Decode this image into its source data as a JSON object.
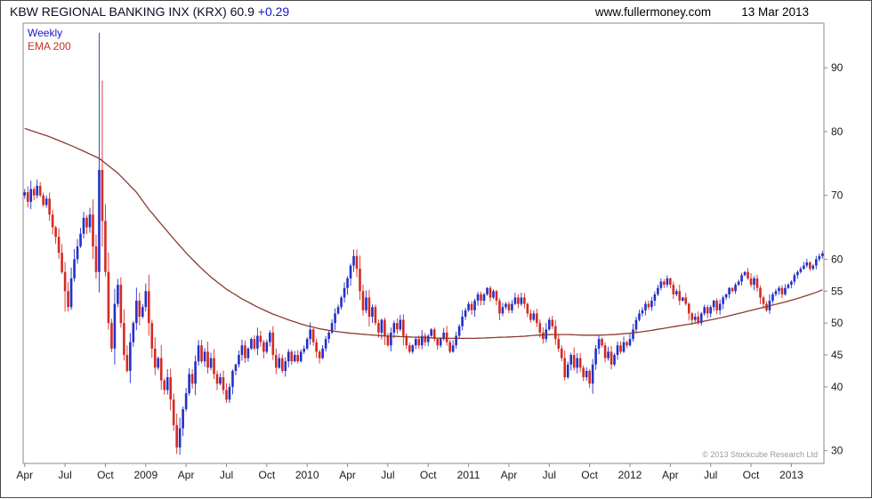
{
  "header": {
    "title_name": "KBW REGIONAL BANKING INX (KRX)",
    "title_value": "60.9",
    "title_change": "+0.29",
    "website": "www.fullermoney.com",
    "date": "13 Mar 2013"
  },
  "legend": {
    "timeframe": "Weekly",
    "indicator": "EMA 200"
  },
  "footer": {
    "copyright": "© 2013 Stockcube Research Ltd"
  },
  "colors": {
    "up": "#2330c8",
    "down": "#d42a22",
    "ema": "#8b3a30",
    "frame": "#8a8a8a",
    "tick_label": "#1a1a1a",
    "title": "#0b0b2a",
    "change": "#1717c8",
    "weekly": "#1717c8",
    "ema_label": "#c03328",
    "copyright": "#9a9a9a"
  },
  "chart_data": {
    "type": "candlestick",
    "timeframe": "weekly",
    "title": "KBW REGIONAL BANKING INX (KRX)",
    "last_close": 60.9,
    "change": 0.29,
    "ylim": [
      28,
      97
    ],
    "y_ticks": [
      90,
      80,
      70,
      60,
      55,
      50,
      45,
      40,
      30
    ],
    "x_tick_labels": [
      "Apr",
      "Jul",
      "Oct",
      "2009",
      "Apr",
      "Jul",
      "Oct",
      "2010",
      "Apr",
      "Jul",
      "Oct",
      "2011",
      "Apr",
      "Jul",
      "Oct",
      "2012",
      "Apr",
      "Jul",
      "Oct",
      "2013"
    ],
    "x_tick_weeks": [
      0,
      13,
      26,
      39,
      52,
      65,
      78,
      91,
      104,
      117,
      130,
      143,
      156,
      169,
      182,
      195,
      208,
      221,
      234,
      247
    ],
    "grid": false,
    "legend_entries": [
      "Weekly",
      "EMA 200"
    ],
    "closes": [
      70.5,
      69,
      71,
      70,
      71.5,
      70,
      68.5,
      69.5,
      67,
      65,
      63.5,
      61,
      58,
      55,
      52.5,
      57,
      60,
      62,
      64,
      66.5,
      65,
      67,
      62,
      58,
      74,
      66,
      58,
      50,
      46,
      53,
      56,
      50,
      45,
      42.5,
      47,
      50,
      53.5,
      51,
      52.5,
      55,
      50,
      46,
      43,
      44.5,
      41,
      39.5,
      41.5,
      38,
      34,
      30.5,
      33.5,
      36.5,
      39,
      42,
      40.5,
      44,
      46.5,
      44,
      45.5,
      43,
      44.5,
      42,
      40.5,
      41.5,
      39.5,
      38,
      40,
      42.5,
      43.5,
      45,
      46.5,
      44.5,
      46,
      47.5,
      46,
      48,
      47,
      45.5,
      47,
      48.5,
      45,
      43,
      44.5,
      42.5,
      44,
      45.5,
      44,
      45,
      44,
      45.5,
      46,
      47.5,
      49,
      47,
      45.5,
      44.5,
      46,
      47.5,
      48.5,
      50,
      51.5,
      52.5,
      54,
      55.5,
      57,
      59,
      60.5,
      58.5,
      55,
      52,
      54,
      51,
      52.5,
      50,
      48.5,
      50.5,
      48,
      46.5,
      48.5,
      50,
      49,
      50.5,
      48,
      46.5,
      45.5,
      46.5,
      47.5,
      46.5,
      48,
      47,
      48,
      49,
      47.5,
      46.5,
      47.5,
      48.5,
      47,
      45.5,
      46.5,
      48,
      49.5,
      51,
      52,
      53,
      52,
      53.5,
      54.5,
      53.5,
      54.5,
      55.5,
      54,
      55,
      53.5,
      51.5,
      52.5,
      53,
      52,
      53,
      54,
      53,
      54,
      53,
      51.5,
      50.5,
      51.5,
      50,
      48.5,
      47.5,
      49,
      50.5,
      49.5,
      47.5,
      46,
      44.5,
      41.5,
      43.5,
      45,
      43,
      44.5,
      43,
      41.5,
      42.5,
      40.5,
      43.5,
      46,
      47.5,
      46.5,
      44.5,
      45.5,
      43.5,
      45,
      46.5,
      45.5,
      47,
      46.5,
      47.5,
      49,
      50.5,
      51.5,
      52,
      53,
      52.5,
      53.5,
      54.5,
      55.5,
      56.5,
      56,
      57,
      56,
      54.5,
      55,
      53.5,
      54,
      53,
      51.5,
      50.5,
      51,
      50,
      51.5,
      52.5,
      51.5,
      52.5,
      53.5,
      52,
      53,
      54,
      54.5,
      55.5,
      55,
      56,
      56.5,
      57.5,
      58,
      57,
      56,
      57,
      55.5,
      54,
      53,
      52,
      53.5,
      54.5,
      55,
      55.5,
      54.5,
      55.5,
      56,
      56.5,
      57.5,
      58,
      58.5,
      59,
      59.5,
      58.5,
      59,
      60,
      60.5,
      60.9
    ],
    "high_overrides": {
      "24": 95.5,
      "25": 88.0,
      "106": 61.5,
      "257": 61.3
    },
    "low_overrides": {
      "13": 51.8,
      "25": 62.0,
      "49": 29.5,
      "174": 41.0,
      "182": 39.8
    },
    "ema200_anchors": [
      [
        0,
        80.5
      ],
      [
        8,
        79.2
      ],
      [
        16,
        77.6
      ],
      [
        24,
        75.8
      ],
      [
        30,
        73.5
      ],
      [
        36,
        70.5
      ],
      [
        40,
        67.8
      ],
      [
        44,
        65.5
      ],
      [
        48,
        63.2
      ],
      [
        52,
        61.0
      ],
      [
        56,
        59.0
      ],
      [
        60,
        57.2
      ],
      [
        65,
        55.3
      ],
      [
        70,
        53.8
      ],
      [
        75,
        52.5
      ],
      [
        80,
        51.4
      ],
      [
        85,
        50.5
      ],
      [
        90,
        49.7
      ],
      [
        95,
        49.1
      ],
      [
        100,
        48.7
      ],
      [
        105,
        48.4
      ],
      [
        110,
        48.2
      ],
      [
        115,
        48.0
      ],
      [
        120,
        47.9
      ],
      [
        125,
        47.8
      ],
      [
        130,
        47.7
      ],
      [
        135,
        47.6
      ],
      [
        140,
        47.6
      ],
      [
        145,
        47.6
      ],
      [
        150,
        47.7
      ],
      [
        155,
        47.8
      ],
      [
        160,
        47.9
      ],
      [
        165,
        48.1
      ],
      [
        170,
        48.2
      ],
      [
        175,
        48.2
      ],
      [
        180,
        48.1
      ],
      [
        185,
        48.1
      ],
      [
        190,
        48.2
      ],
      [
        195,
        48.4
      ],
      [
        200,
        48.7
      ],
      [
        205,
        49.1
      ],
      [
        210,
        49.5
      ],
      [
        215,
        49.9
      ],
      [
        220,
        50.4
      ],
      [
        225,
        50.9
      ],
      [
        230,
        51.5
      ],
      [
        235,
        52.1
      ],
      [
        240,
        52.7
      ],
      [
        245,
        53.3
      ],
      [
        250,
        54.0
      ],
      [
        255,
        54.8
      ],
      [
        257,
        55.2
      ]
    ]
  }
}
